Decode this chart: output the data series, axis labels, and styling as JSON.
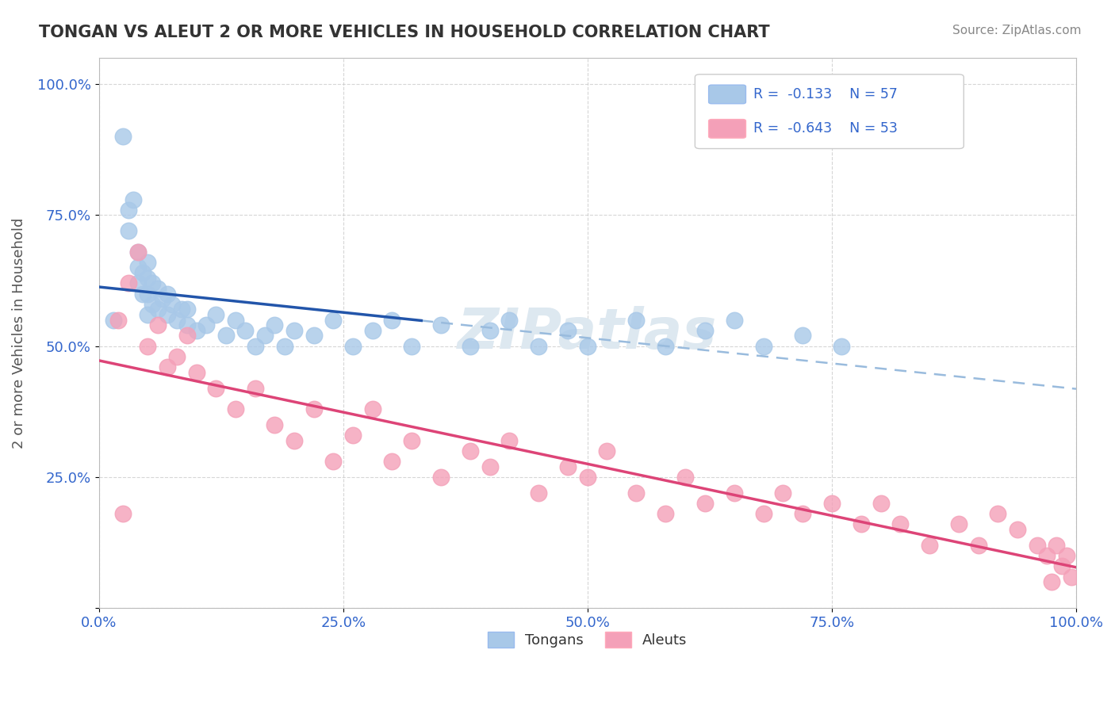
{
  "title": "TONGAN VS ALEUT 2 OR MORE VEHICLES IN HOUSEHOLD CORRELATION CHART",
  "source": "Source: ZipAtlas.com",
  "ylabel": "2 or more Vehicles in Household",
  "xmin": 0.0,
  "xmax": 1.0,
  "ymin": 0.0,
  "ymax": 1.05,
  "R_tongan": -0.133,
  "N_tongan": 57,
  "R_aleut": -0.643,
  "N_aleut": 53,
  "tongan_color": "#a8c8e8",
  "aleut_color": "#f4a0b8",
  "tongan_line_color": "#2255aa",
  "aleut_line_color": "#dd4477",
  "dashed_line_color": "#99bbdd",
  "background_color": "#ffffff",
  "grid_color": "#cccccc",
  "tick_color": "#3366cc",
  "title_color": "#333333",
  "source_color": "#888888",
  "ylabel_color": "#555555",
  "watermark_color": "#dde8f0",
  "tongan_x": [
    0.015,
    0.025,
    0.03,
    0.03,
    0.035,
    0.04,
    0.04,
    0.04,
    0.045,
    0.045,
    0.05,
    0.05,
    0.05,
    0.05,
    0.055,
    0.055,
    0.06,
    0.06,
    0.065,
    0.07,
    0.07,
    0.075,
    0.08,
    0.085,
    0.09,
    0.09,
    0.1,
    0.11,
    0.12,
    0.13,
    0.14,
    0.15,
    0.16,
    0.17,
    0.18,
    0.19,
    0.2,
    0.22,
    0.24,
    0.26,
    0.28,
    0.3,
    0.32,
    0.35,
    0.38,
    0.4,
    0.42,
    0.45,
    0.48,
    0.5,
    0.55,
    0.58,
    0.62,
    0.65,
    0.68,
    0.72,
    0.76
  ],
  "tongan_y": [
    0.55,
    0.9,
    0.72,
    0.76,
    0.78,
    0.62,
    0.65,
    0.68,
    0.6,
    0.64,
    0.56,
    0.6,
    0.63,
    0.66,
    0.58,
    0.62,
    0.57,
    0.61,
    0.59,
    0.56,
    0.6,
    0.58,
    0.55,
    0.57,
    0.54,
    0.57,
    0.53,
    0.54,
    0.56,
    0.52,
    0.55,
    0.53,
    0.5,
    0.52,
    0.54,
    0.5,
    0.53,
    0.52,
    0.55,
    0.5,
    0.53,
    0.55,
    0.5,
    0.54,
    0.5,
    0.53,
    0.55,
    0.5,
    0.53,
    0.5,
    0.55,
    0.5,
    0.53,
    0.55,
    0.5,
    0.52,
    0.5
  ],
  "aleut_x": [
    0.02,
    0.025,
    0.03,
    0.04,
    0.05,
    0.06,
    0.07,
    0.08,
    0.09,
    0.1,
    0.12,
    0.14,
    0.16,
    0.18,
    0.2,
    0.22,
    0.24,
    0.26,
    0.28,
    0.3,
    0.32,
    0.35,
    0.38,
    0.4,
    0.42,
    0.45,
    0.48,
    0.5,
    0.52,
    0.55,
    0.58,
    0.6,
    0.62,
    0.65,
    0.68,
    0.7,
    0.72,
    0.75,
    0.78,
    0.8,
    0.82,
    0.85,
    0.88,
    0.9,
    0.92,
    0.94,
    0.96,
    0.97,
    0.975,
    0.98,
    0.985,
    0.99,
    0.995
  ],
  "aleut_y": [
    0.55,
    0.18,
    0.62,
    0.68,
    0.5,
    0.54,
    0.46,
    0.48,
    0.52,
    0.45,
    0.42,
    0.38,
    0.42,
    0.35,
    0.32,
    0.38,
    0.28,
    0.33,
    0.38,
    0.28,
    0.32,
    0.25,
    0.3,
    0.27,
    0.32,
    0.22,
    0.27,
    0.25,
    0.3,
    0.22,
    0.18,
    0.25,
    0.2,
    0.22,
    0.18,
    0.22,
    0.18,
    0.2,
    0.16,
    0.2,
    0.16,
    0.12,
    0.16,
    0.12,
    0.18,
    0.15,
    0.12,
    0.1,
    0.05,
    0.12,
    0.08,
    0.1,
    0.06
  ]
}
